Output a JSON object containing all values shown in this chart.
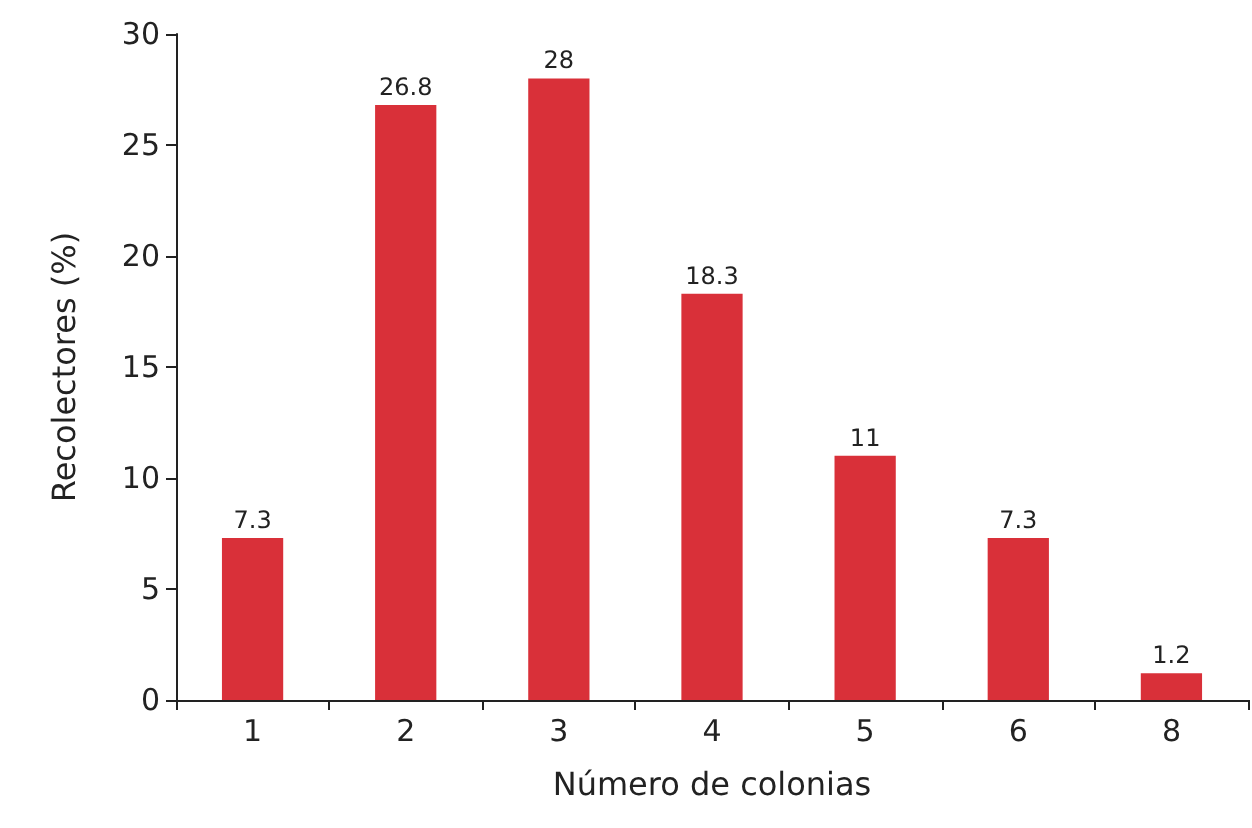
{
  "chart_data": {
    "type": "bar",
    "xlabel": "Número de colonias",
    "ylabel": "Recolectores (%)",
    "categories": [
      "1",
      "2",
      "3",
      "4",
      "5",
      "6",
      "8"
    ],
    "values": [
      7.3,
      26.8,
      28,
      18.3,
      11,
      7.3,
      1.2
    ],
    "color": "#d93039",
    "ylim": [
      0,
      30
    ],
    "yticks": [
      0,
      5,
      10,
      15,
      20,
      25,
      30
    ],
    "grid": false,
    "data_labels": true
  }
}
